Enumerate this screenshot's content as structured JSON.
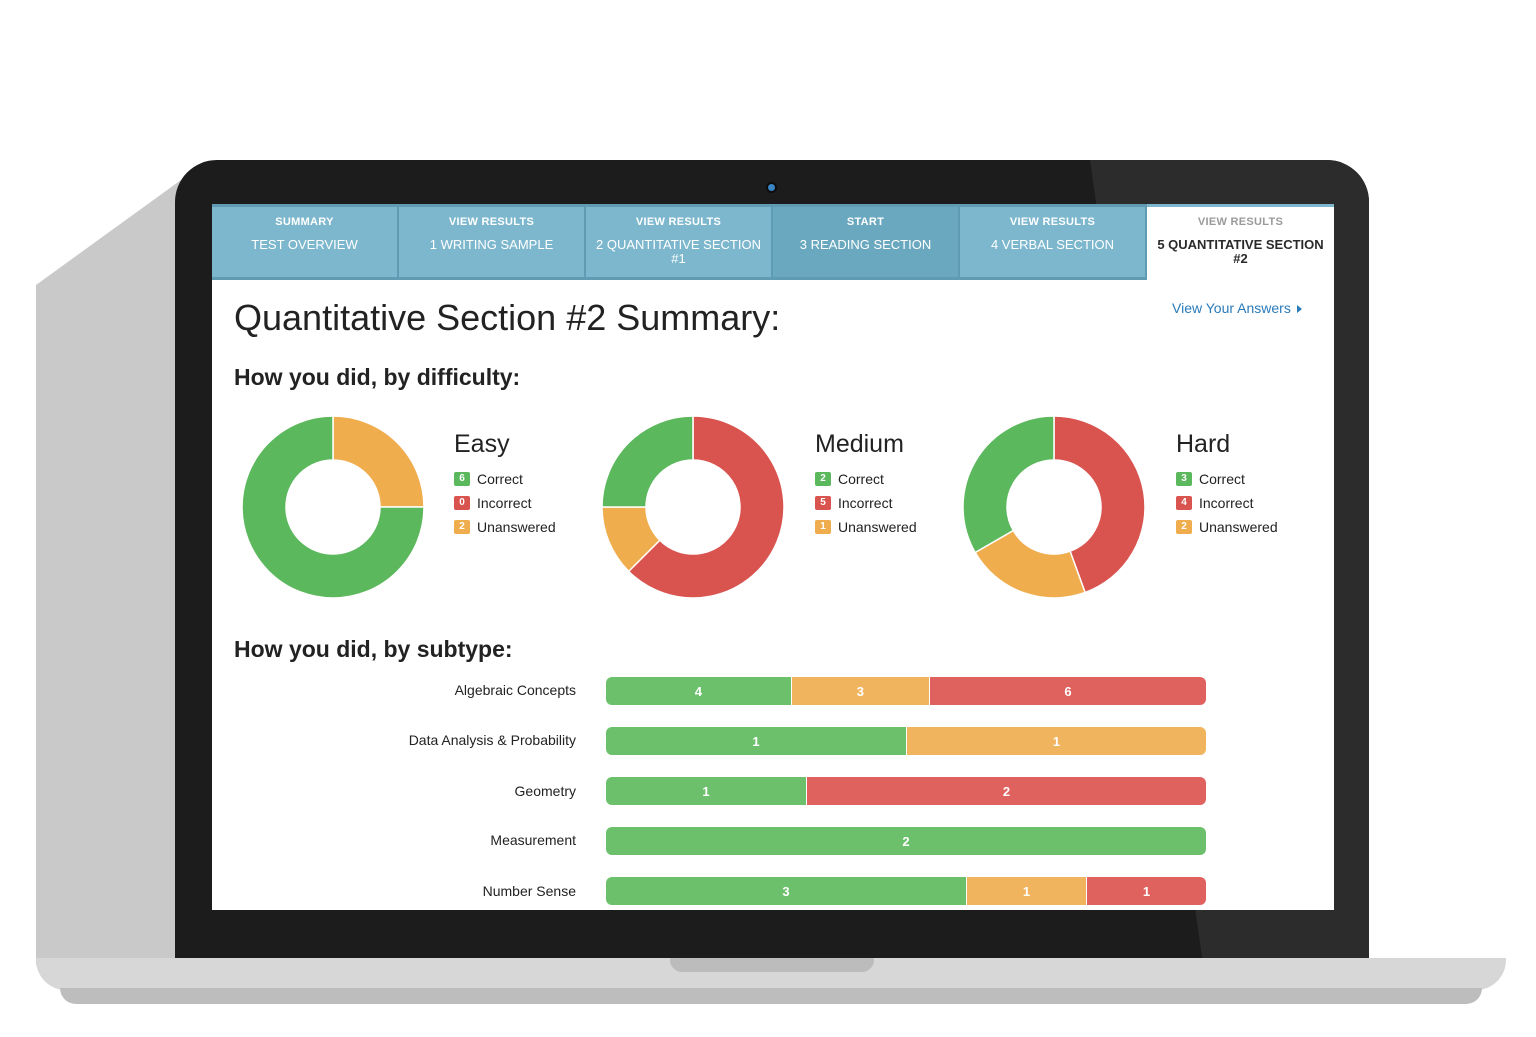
{
  "tabs": [
    {
      "kicker": "SUMMARY",
      "name": "TEST OVERVIEW",
      "state": "default"
    },
    {
      "kicker": "VIEW RESULTS",
      "name": "1 WRITING SAMPLE",
      "state": "default"
    },
    {
      "kicker": "VIEW RESULTS",
      "name": "2 QUANTITATIVE SECTION #1",
      "state": "default"
    },
    {
      "kicker": "START",
      "name": "3 READING SECTION",
      "state": "dark"
    },
    {
      "kicker": "VIEW RESULTS",
      "name": "4 VERBAL SECTION",
      "state": "default"
    },
    {
      "kicker": "VIEW RESULTS",
      "name": "5 QUANTITATIVE SECTION #2",
      "state": "active"
    }
  ],
  "page": {
    "title": "Quantitative Section #2 Summary:",
    "view_answers": "View Your Answers",
    "difficulty_heading": "How you did, by difficulty:",
    "subtype_heading": "How you did, by subtype:"
  },
  "legend_labels": {
    "correct": "Correct",
    "incorrect": "Incorrect",
    "unanswered": "Unanswered"
  },
  "colors": {
    "correct": "#5cb85c",
    "incorrect": "#d9534f",
    "unanswered": "#f0ad4e"
  },
  "difficulty": [
    {
      "name": "Easy",
      "correct": 6,
      "incorrect": 0,
      "unanswered": 2
    },
    {
      "name": "Medium",
      "correct": 2,
      "incorrect": 5,
      "unanswered": 1
    },
    {
      "name": "Hard",
      "correct": 3,
      "incorrect": 4,
      "unanswered": 2
    }
  ],
  "subtypes": [
    {
      "name": "Algebraic Concepts",
      "segments": [
        {
          "type": "correct",
          "value": 4
        },
        {
          "type": "unanswered",
          "value": 3
        },
        {
          "type": "incorrect",
          "value": 6
        }
      ]
    },
    {
      "name": "Data Analysis & Probability",
      "segments": [
        {
          "type": "correct",
          "value": 1
        },
        {
          "type": "unanswered",
          "value": 1
        }
      ]
    },
    {
      "name": "Geometry",
      "segments": [
        {
          "type": "correct",
          "value": 1
        },
        {
          "type": "incorrect",
          "value": 2
        }
      ]
    },
    {
      "name": "Measurement",
      "segments": [
        {
          "type": "correct",
          "value": 2
        }
      ]
    },
    {
      "name": "Number Sense",
      "segments": [
        {
          "type": "correct",
          "value": 3
        },
        {
          "type": "unanswered",
          "value": 1
        },
        {
          "type": "incorrect",
          "value": 1
        }
      ]
    }
  ]
}
